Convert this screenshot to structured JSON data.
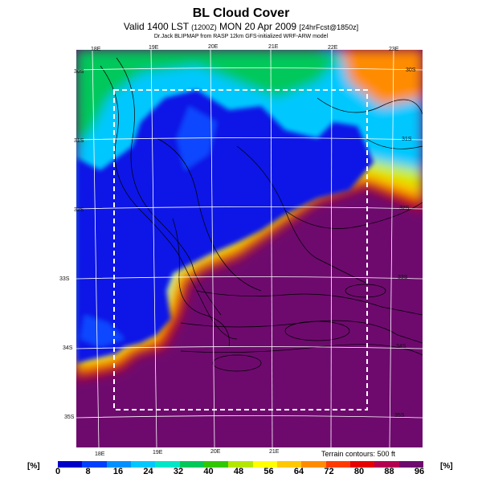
{
  "header": {
    "title": "BL Cloud Cover",
    "subtitle_main": "Valid 1400 LST",
    "subtitle_small1": "(1200Z)",
    "subtitle_date": "MON 20 Apr 2009",
    "subtitle_small2": "[24hrFcst@1850z]",
    "credit": "Dr.Jack BLIPMAP from RASP 12km GFS-initialized WRF-ARW model"
  },
  "map": {
    "lon_labels_top": [
      "18E",
      "19E",
      "20E",
      "21E",
      "22E",
      "23E"
    ],
    "lon_labels_bottom": [
      "18E",
      "19E",
      "20E",
      "21E"
    ],
    "lat_labels_left": [
      "30S",
      "31S",
      "32S",
      "33S",
      "34S",
      "35S"
    ],
    "lat_labels_right": [
      "30S",
      "31S",
      "32S",
      "33S",
      "34S",
      "35S"
    ],
    "terrain_note": "Terrain contours: 500 ft"
  },
  "colorbar": {
    "unit_left": "[%]",
    "unit_right": "[%]",
    "labels": [
      "0",
      "8",
      "16",
      "24",
      "32",
      "40",
      "48",
      "56",
      "64",
      "72",
      "80",
      "88",
      "96"
    ],
    "colors": [
      "#0000c8",
      "#0040ff",
      "#0090ff",
      "#00c8ff",
      "#00e6c8",
      "#00c85a",
      "#32c800",
      "#b4e600",
      "#ffff00",
      "#ffc800",
      "#ff8c00",
      "#ff3c00",
      "#e60000",
      "#b40050",
      "#6e0a6e"
    ]
  },
  "colors": {
    "low_cover": "#0a14e6",
    "high_cover": "#6e0a6e"
  }
}
